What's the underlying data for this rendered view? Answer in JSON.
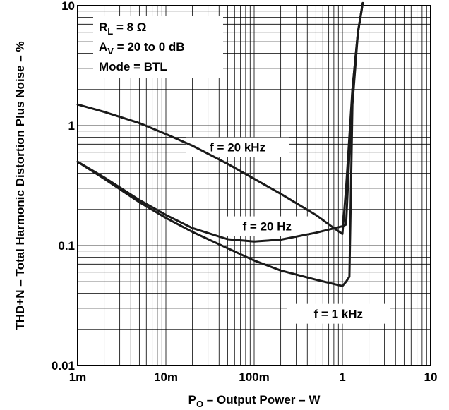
{
  "chart_data": {
    "type": "line",
    "xlabel": {
      "main": "P",
      "sub": "O",
      "rest": " – Output Power – W"
    },
    "ylabel": "THD+N – Total Harmonic Distortion Plus Noise – %",
    "x_scale": "log",
    "y_scale": "log",
    "xlim": [
      0.001,
      10
    ],
    "ylim": [
      0.01,
      10
    ],
    "x_ticks": [
      {
        "value": 0.001,
        "label": "1m"
      },
      {
        "value": 0.01,
        "label": "10m"
      },
      {
        "value": 0.1,
        "label": "100m"
      },
      {
        "value": 1,
        "label": "1"
      },
      {
        "value": 10,
        "label": "10"
      }
    ],
    "y_ticks": [
      {
        "value": 0.01,
        "label": "0.01"
      },
      {
        "value": 0.1,
        "label": "0.1"
      },
      {
        "value": 1,
        "label": "1"
      },
      {
        "value": 10,
        "label": "10"
      }
    ],
    "grid": true,
    "conditions": {
      "line1": {
        "main": "R",
        "sub": "L",
        "rest": " = 8 Ω"
      },
      "line2": {
        "main": "A",
        "sub": "V",
        "rest": " = 20 to 0 dB"
      },
      "line3": {
        "main": "Mode = BTL",
        "sub": "",
        "rest": ""
      }
    },
    "series": [
      {
        "name": "f = 20 kHz",
        "x": [
          0.001,
          0.002,
          0.005,
          0.01,
          0.02,
          0.05,
          0.1,
          0.2,
          0.5,
          0.8,
          1.0,
          1.1,
          1.3,
          1.5,
          1.7
        ],
        "y": [
          1.5,
          1.3,
          1.05,
          0.85,
          0.68,
          0.48,
          0.36,
          0.27,
          0.18,
          0.14,
          0.125,
          0.3,
          2.0,
          6.0,
          10.5
        ]
      },
      {
        "name": "f = 20 Hz",
        "x": [
          0.001,
          0.002,
          0.005,
          0.01,
          0.02,
          0.05,
          0.1,
          0.2,
          0.5,
          1.0,
          1.1,
          1.3,
          1.5,
          1.7
        ],
        "y": [
          0.5,
          0.37,
          0.24,
          0.18,
          0.14,
          0.113,
          0.108,
          0.112,
          0.128,
          0.145,
          0.15,
          2.0,
          6.0,
          10.5
        ]
      },
      {
        "name": "f = 1 kHz",
        "x": [
          0.001,
          0.002,
          0.005,
          0.01,
          0.02,
          0.05,
          0.1,
          0.2,
          0.5,
          1.0,
          1.1,
          1.2,
          1.3,
          1.5,
          1.7
        ],
        "y": [
          0.5,
          0.36,
          0.23,
          0.17,
          0.13,
          0.095,
          0.075,
          0.062,
          0.052,
          0.046,
          0.05,
          0.055,
          1.5,
          6.0,
          10.5
        ]
      }
    ]
  }
}
